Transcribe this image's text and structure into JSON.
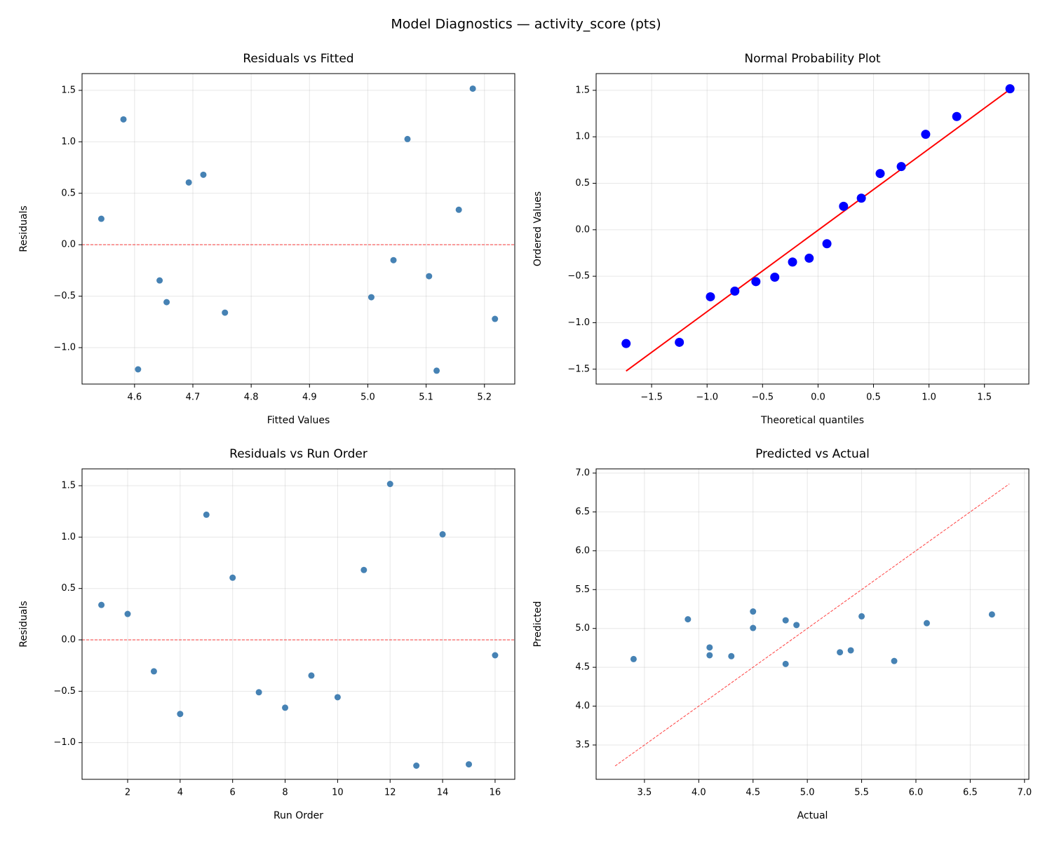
{
  "title": "Model Diagnostics — activity_score (pts)",
  "chart_data": [
    {
      "type": "scatter",
      "title": "Residuals vs Fitted",
      "xlabel": "Fitted Values",
      "ylabel": "Residuals",
      "x": [
        4.543,
        4.581,
        4.606,
        4.643,
        4.655,
        4.693,
        4.718,
        4.755,
        5.006,
        5.044,
        5.068,
        5.105,
        5.118,
        5.156,
        5.18,
        5.218
      ],
      "values": [
        0.252,
        1.218,
        -1.211,
        -0.347,
        -0.558,
        0.605,
        0.68,
        -0.66,
        -0.51,
        -0.15,
        1.027,
        -0.306,
        -1.224,
        0.34,
        1.517,
        -0.721
      ],
      "color": "#4682b4",
      "marker_size": 4.5,
      "xlim": [
        4.51,
        5.252
      ],
      "ylim": [
        -1.354,
        1.663
      ],
      "xticks": [
        4.6,
        4.7,
        4.8,
        4.9,
        {
          "value": 5.0,
          "label": "5.0"
        },
        5.1,
        5.2
      ],
      "yticks": [
        {
          "value": -1.0,
          "label": "−1.0"
        },
        {
          "value": -0.5,
          "label": "−0.5"
        },
        {
          "value": 0.0,
          "label": "0.0"
        },
        0.5,
        {
          "value": 1.0,
          "label": "1.0"
        },
        1.5
      ],
      "grid": true,
      "hline": {
        "y": 0,
        "color": "#ff0000",
        "style": "dashed"
      }
    },
    {
      "type": "scatter",
      "title": "Normal Probability Plot",
      "xlabel": "Theoretical quantiles",
      "ylabel": "Ordered Values",
      "x": [
        -1.73,
        -1.25,
        -0.97,
        -0.75,
        -0.56,
        -0.39,
        -0.23,
        -0.08,
        0.08,
        0.23,
        0.39,
        0.56,
        0.75,
        0.97,
        1.25,
        1.73
      ],
      "values": [
        -1.224,
        -1.211,
        -0.721,
        -0.66,
        -0.558,
        -0.51,
        -0.347,
        -0.306,
        -0.15,
        0.252,
        0.34,
        0.605,
        0.68,
        1.027,
        1.218,
        1.517
      ],
      "color": "#0000ff",
      "marker_size": 6.5,
      "lines": [
        {
          "x": [
            -1.73,
            1.73
          ],
          "values": [
            -1.52,
            1.51
          ],
          "color": "#ff0000",
          "style": "solid"
        }
      ],
      "xlim": [
        -2.0,
        1.9
      ],
      "ylim": [
        -1.66,
        1.68
      ],
      "xticks": [
        {
          "value": -1.5,
          "label": "−1.5"
        },
        {
          "value": -1.0,
          "label": "−1.0"
        },
        {
          "value": -0.5,
          "label": "−0.5"
        },
        {
          "value": 0.0,
          "label": "0.0"
        },
        0.5,
        {
          "value": 1.0,
          "label": "1.0"
        },
        1.5
      ],
      "yticks": [
        {
          "value": -1.5,
          "label": "−1.5"
        },
        {
          "value": -1.0,
          "label": "−1.0"
        },
        {
          "value": -0.5,
          "label": "−0.5"
        },
        {
          "value": 0.0,
          "label": "0.0"
        },
        0.5,
        {
          "value": 1.0,
          "label": "1.0"
        },
        1.5
      ],
      "grid": true
    },
    {
      "type": "scatter",
      "title": "Residuals vs Run Order",
      "xlabel": "Run Order",
      "ylabel": "Residuals",
      "x": [
        1,
        2,
        3,
        4,
        5,
        6,
        7,
        8,
        9,
        10,
        11,
        12,
        13,
        14,
        15,
        16
      ],
      "values": [
        0.34,
        0.252,
        -0.306,
        -0.721,
        1.218,
        0.605,
        -0.51,
        -0.66,
        -0.347,
        -0.558,
        0.68,
        1.517,
        -1.224,
        1.027,
        -1.211,
        -0.15
      ],
      "color": "#4682b4",
      "marker_size": 4.5,
      "xlim": [
        0.263,
        16.75
      ],
      "ylim": [
        -1.357,
        1.664
      ],
      "xticks": [
        2,
        4,
        6,
        8,
        10,
        12,
        14,
        16
      ],
      "yticks": [
        {
          "value": -1.0,
          "label": "−1.0"
        },
        {
          "value": -0.5,
          "label": "−0.5"
        },
        {
          "value": 0.0,
          "label": "0.0"
        },
        0.5,
        {
          "value": 1.0,
          "label": "1.0"
        },
        1.5
      ],
      "grid": true,
      "hline": {
        "y": 0,
        "color": "#ff0000",
        "style": "dashed"
      }
    },
    {
      "type": "scatter",
      "title": "Predicted vs Actual",
      "xlabel": "Actual",
      "ylabel": "Predicted",
      "x": [
        5.5,
        4.8,
        4.8,
        4.5,
        5.8,
        5.3,
        4.5,
        4.1,
        4.3,
        4.1,
        5.4,
        6.7,
        3.9,
        6.1,
        3.4,
        4.9
      ],
      "values": [
        5.156,
        4.543,
        5.105,
        5.218,
        4.581,
        4.693,
        5.006,
        4.755,
        4.643,
        4.655,
        4.718,
        5.18,
        5.118,
        5.068,
        4.606,
        5.044
      ],
      "color": "#4682b4",
      "marker_size": 4.5,
      "lines": [
        {
          "x": [
            3.23,
            6.86
          ],
          "values": [
            3.23,
            6.86
          ],
          "color": "#ff0000",
          "style": "dashed"
        }
      ],
      "xlim": [
        3.055,
        7.04
      ],
      "ylim": [
        3.058,
        7.054
      ],
      "xticks": [
        3.5,
        {
          "value": 4.0,
          "label": "4.0"
        },
        4.5,
        {
          "value": 5.0,
          "label": "5.0"
        },
        5.5,
        {
          "value": 6.0,
          "label": "6.0"
        },
        6.5,
        {
          "value": 7.0,
          "label": "7.0"
        }
      ],
      "yticks": [
        3.5,
        {
          "value": 4.0,
          "label": "4.0"
        },
        4.5,
        {
          "value": 5.0,
          "label": "5.0"
        },
        5.5,
        {
          "value": 6.0,
          "label": "6.0"
        },
        6.5,
        {
          "value": 7.0,
          "label": "7.0"
        }
      ],
      "grid": true
    }
  ]
}
